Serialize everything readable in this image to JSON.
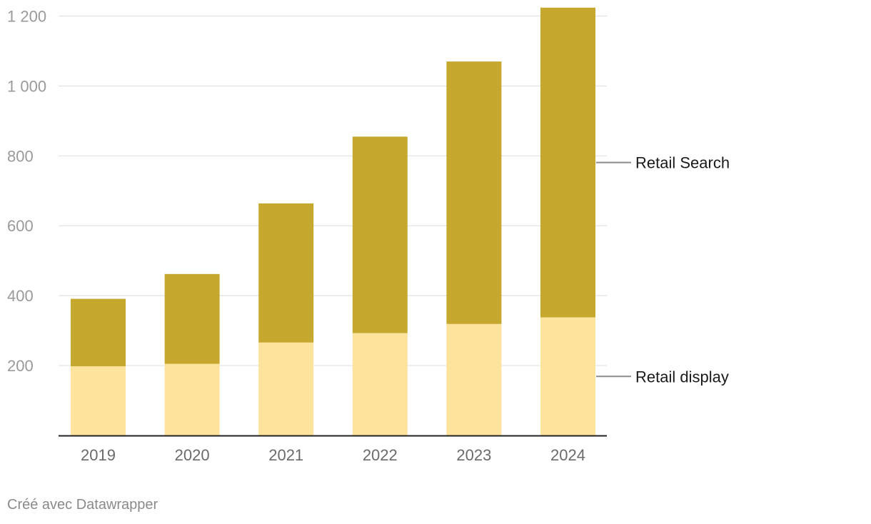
{
  "chart_data": {
    "type": "bar",
    "stacked": true,
    "categories": [
      "2019",
      "2020",
      "2021",
      "2022",
      "2023",
      "2024"
    ],
    "series": [
      {
        "name": "Retail display",
        "values": [
          198,
          205,
          266,
          293,
          319,
          338
        ],
        "color": "#fde39c"
      },
      {
        "name": "Retail Search",
        "values": [
          193,
          257,
          398,
          562,
          751,
          886
        ],
        "color": "#c5a82d"
      }
    ],
    "y_ticks": [
      200,
      400,
      600,
      800,
      1000,
      1200
    ],
    "y_tick_labels": [
      "200",
      "400",
      "600",
      "800",
      "1 000",
      "1 200"
    ],
    "ylim": [
      0,
      1200
    ],
    "grid": true,
    "legend": "right-inline"
  },
  "credit": "Créé avec Datawrapper"
}
